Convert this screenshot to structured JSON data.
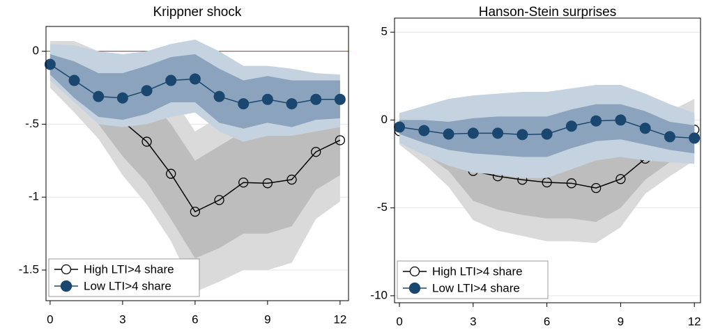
{
  "chart_data": [
    {
      "type": "line",
      "title": "Krippner shock",
      "x": [
        0,
        1,
        2,
        3,
        4,
        5,
        6,
        7,
        8,
        9,
        10,
        11,
        12
      ],
      "xlim": [
        -0.17,
        12.35
      ],
      "xticks": [
        0,
        3,
        6,
        9,
        12
      ],
      "ylim": [
        -1.71,
        0.17
      ],
      "yticks": [
        0,
        {
          "value": -0.5,
          "label": "-.5"
        },
        -1,
        -1.5
      ],
      "grid": true,
      "hline": 0,
      "hline_color": "#e02020",
      "legend": "lower left",
      "series": [
        {
          "name": "High LTI>4 share",
          "color": "#000000",
          "marker": "hollow",
          "values": [
            -0.09,
            -0.22,
            -0.35,
            -0.48,
            -0.62,
            -0.84,
            -1.1,
            -1.02,
            -0.9,
            -0.905,
            -0.88,
            -0.69,
            -0.61
          ],
          "bands": [
            {
              "color": "#dadada",
              "upper": [
                0.07,
                0.07,
                0.0,
                -0.05,
                -0.1,
                -0.3,
                -0.55,
                -0.45,
                -0.4,
                -0.45,
                -0.45,
                -0.3,
                -0.2
              ],
              "lower": [
                -0.25,
                -0.42,
                -0.6,
                -0.85,
                -1.05,
                -1.3,
                -1.65,
                -1.58,
                -1.5,
                -1.5,
                -1.45,
                -1.15,
                -1.03
              ]
            },
            {
              "color": "#bdbdbd",
              "upper": [
                0.0,
                0.0,
                -0.1,
                -0.2,
                -0.3,
                -0.5,
                -0.75,
                -0.65,
                -0.55,
                -0.55,
                -0.55,
                -0.45,
                -0.38
              ],
              "lower": [
                -0.17,
                -0.32,
                -0.5,
                -0.72,
                -0.9,
                -1.15,
                -1.42,
                -1.35,
                -1.25,
                -1.25,
                -1.2,
                -0.95,
                -0.85
              ]
            }
          ]
        },
        {
          "name": "Low LTI>4 share",
          "color": "#1a476f",
          "marker": "filled",
          "values": [
            -0.09,
            -0.2,
            -0.31,
            -0.32,
            -0.27,
            -0.2,
            -0.19,
            -0.31,
            -0.36,
            -0.33,
            -0.36,
            -0.33,
            -0.33
          ],
          "bands": [
            {
              "color": "#c5d2df",
              "upper": [
                0.05,
                0.04,
                0.0,
                -0.02,
                0.0,
                0.05,
                0.08,
                0.0,
                -0.1,
                -0.1,
                -0.12,
                -0.15,
                -0.16
              ],
              "lower": [
                -0.2,
                -0.35,
                -0.5,
                -0.52,
                -0.5,
                -0.45,
                -0.42,
                -0.55,
                -0.62,
                -0.58,
                -0.58,
                -0.55,
                -0.52
              ]
            },
            {
              "color": "#8ba3bc",
              "upper": [
                -0.02,
                -0.07,
                -0.15,
                -0.15,
                -0.1,
                -0.04,
                -0.02,
                -0.12,
                -0.2,
                -0.17,
                -0.2,
                -0.2,
                -0.2
              ],
              "lower": [
                -0.16,
                -0.32,
                -0.45,
                -0.47,
                -0.43,
                -0.35,
                -0.35,
                -0.49,
                -0.53,
                -0.49,
                -0.52,
                -0.47,
                -0.46
              ]
            }
          ]
        }
      ]
    },
    {
      "type": "line",
      "title": "Hanson-Stein surprises",
      "x": [
        0,
        1,
        2,
        3,
        4,
        5,
        6,
        7,
        8,
        9,
        10,
        11,
        12
      ],
      "xlim": [
        -0.2,
        12.25
      ],
      "xticks": [
        0,
        3,
        6,
        9,
        12
      ],
      "ylim": [
        -10.4,
        5.8
      ],
      "yticks": [
        5,
        0,
        -5,
        -10
      ],
      "grid": true,
      "legend": "lower left",
      "series": [
        {
          "name": "High LTI>4 share",
          "color": "#000000",
          "marker": "hollow",
          "values": [
            -0.63,
            -1.3,
            -2.0,
            -2.9,
            -3.2,
            -3.4,
            -3.55,
            -3.6,
            -3.87,
            -3.36,
            -2.2,
            -1.3,
            -0.55
          ],
          "bands": [
            {
              "color": "#dadada",
              "upper": [
                0.0,
                -0.3,
                -0.6,
                -0.9,
                -1.0,
                -1.1,
                -1.2,
                -1.2,
                -1.3,
                -1.0,
                -0.4,
                0.5,
                1.2
              ],
              "lower": [
                -1.4,
                -2.5,
                -3.8,
                -5.7,
                -6.3,
                -6.6,
                -6.9,
                -6.9,
                -7.0,
                -6.1,
                -4.2,
                -3.2,
                -2.3
              ]
            },
            {
              "color": "#bdbdbd",
              "upper": [
                -0.3,
                -0.8,
                -1.4,
                -1.7,
                -1.9,
                -2.0,
                -2.0,
                -2.1,
                -2.2,
                -1.7,
                -1.1,
                -0.3,
                0.3
              ],
              "lower": [
                -1.0,
                -1.9,
                -2.9,
                -4.6,
                -5.1,
                -5.4,
                -5.6,
                -5.6,
                -5.8,
                -5.0,
                -3.4,
                -2.4,
                -1.5
              ]
            }
          ]
        },
        {
          "name": "Low LTI>4 share",
          "color": "#1a476f",
          "marker": "filled",
          "values": [
            -0.4,
            -0.6,
            -0.8,
            -0.75,
            -0.75,
            -0.83,
            -0.8,
            -0.35,
            -0.05,
            0.0,
            -0.47,
            -0.95,
            -1.03
          ],
          "bands": [
            {
              "color": "#c5d2df",
              "upper": [
                0.4,
                0.8,
                1.2,
                1.4,
                1.5,
                1.6,
                1.6,
                1.8,
                2.0,
                2.0,
                1.5,
                0.9,
                0.4
              ],
              "lower": [
                -1.3,
                -2.0,
                -2.6,
                -3.0,
                -3.1,
                -3.3,
                -3.3,
                -2.8,
                -2.3,
                -2.1,
                -2.3,
                -2.4,
                -2.5
              ]
            },
            {
              "color": "#8ba3bc",
              "upper": [
                0.0,
                0.0,
                -0.1,
                0.1,
                0.2,
                0.2,
                0.2,
                0.6,
                0.9,
                0.9,
                0.5,
                -0.1,
                -0.3
              ],
              "lower": [
                -0.8,
                -1.3,
                -1.7,
                -1.9,
                -2.0,
                -2.1,
                -2.1,
                -1.6,
                -1.2,
                -1.1,
                -1.4,
                -1.7,
                -1.9
              ]
            }
          ]
        }
      ]
    }
  ]
}
